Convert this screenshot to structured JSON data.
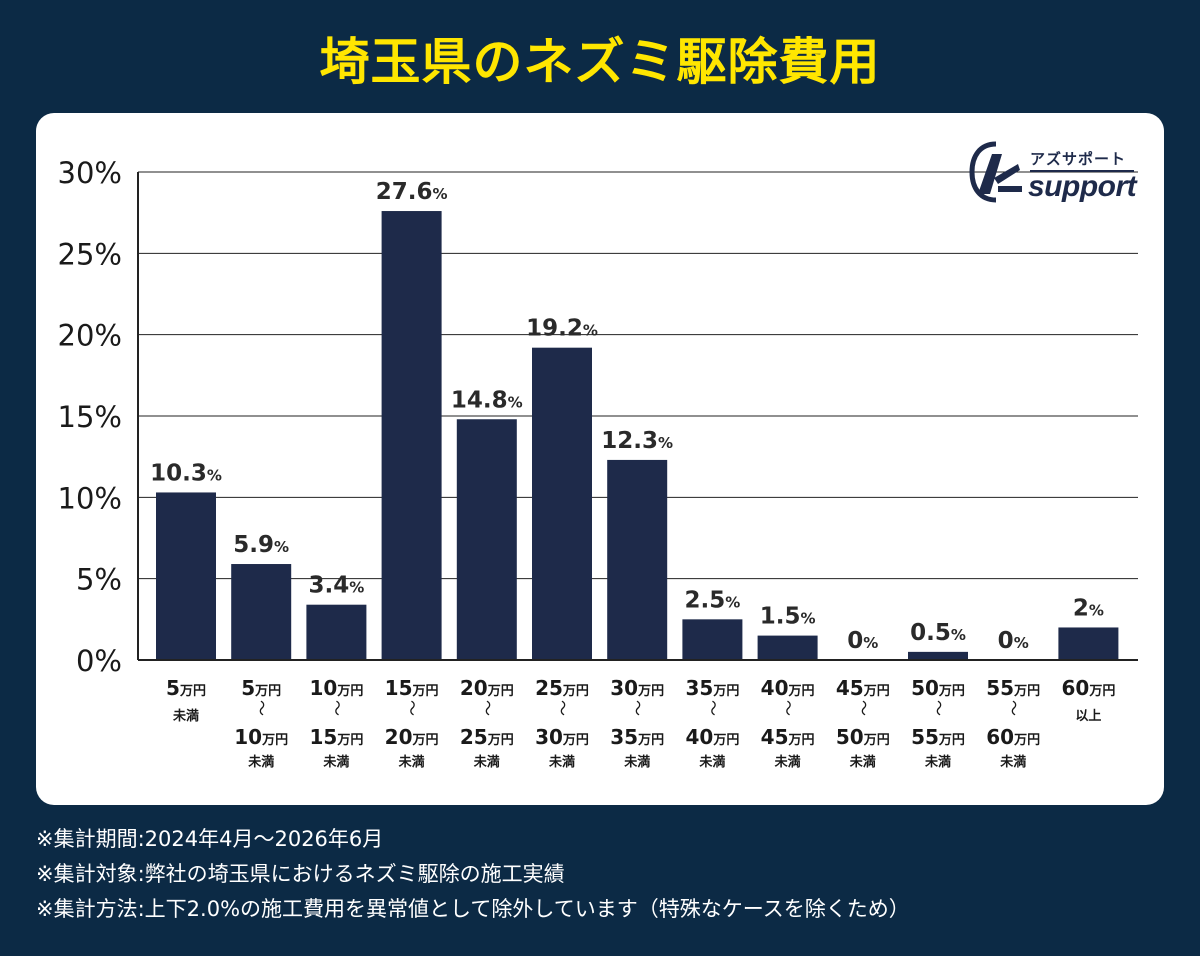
{
  "title": "埼玉県のネズミ駆除費用",
  "logo": {
    "jp": "アズサポート",
    "en": "support",
    "mark": "Az"
  },
  "notes": [
    "※集計期間:2024年4月～2026年6月",
    "※集計対象:弊社の埼玉県におけるネズミ駆除の施工実績",
    "※集計方法:上下2.0%の施工費用を異常値として除外しています（特殊なケースを除くため）"
  ],
  "colors": {
    "bar": "#1e2a4a",
    "background": "#0c2a45",
    "title": "#ffe600",
    "card": "#ffffff"
  },
  "chart_data": {
    "type": "bar",
    "ylim": [
      0,
      30
    ],
    "yticks": [
      {
        "value": 0,
        "label": "0%"
      },
      {
        "value": 5,
        "label": "5%"
      },
      {
        "value": 10,
        "label": "10%"
      },
      {
        "value": 15,
        "label": "15%"
      },
      {
        "value": 20,
        "label": "20%"
      },
      {
        "value": 25,
        "label": "25%"
      },
      {
        "value": 30,
        "label": "30%"
      }
    ],
    "grid": true,
    "categories": [
      {
        "lines": [
          [
            "5",
            "万円"
          ],
          [
            "未満"
          ]
        ]
      },
      {
        "lines": [
          [
            "5",
            "万円"
          ],
          [
            "～"
          ],
          [
            "10",
            "万円"
          ],
          [
            "未満"
          ]
        ]
      },
      {
        "lines": [
          [
            "10",
            "万円"
          ],
          [
            "～"
          ],
          [
            "15",
            "万円"
          ],
          [
            "未満"
          ]
        ]
      },
      {
        "lines": [
          [
            "15",
            "万円"
          ],
          [
            "～"
          ],
          [
            "20",
            "万円"
          ],
          [
            "未満"
          ]
        ]
      },
      {
        "lines": [
          [
            "20",
            "万円"
          ],
          [
            "～"
          ],
          [
            "25",
            "万円"
          ],
          [
            "未満"
          ]
        ]
      },
      {
        "lines": [
          [
            "25",
            "万円"
          ],
          [
            "～"
          ],
          [
            "30",
            "万円"
          ],
          [
            "未満"
          ]
        ]
      },
      {
        "lines": [
          [
            "30",
            "万円"
          ],
          [
            "～"
          ],
          [
            "35",
            "万円"
          ],
          [
            "未満"
          ]
        ]
      },
      {
        "lines": [
          [
            "35",
            "万円"
          ],
          [
            "～"
          ],
          [
            "40",
            "万円"
          ],
          [
            "未満"
          ]
        ]
      },
      {
        "lines": [
          [
            "40",
            "万円"
          ],
          [
            "～"
          ],
          [
            "45",
            "万円"
          ],
          [
            "未満"
          ]
        ]
      },
      {
        "lines": [
          [
            "45",
            "万円"
          ],
          [
            "～"
          ],
          [
            "50",
            "万円"
          ],
          [
            "未満"
          ]
        ]
      },
      {
        "lines": [
          [
            "50",
            "万円"
          ],
          [
            "～"
          ],
          [
            "55",
            "万円"
          ],
          [
            "未満"
          ]
        ]
      },
      {
        "lines": [
          [
            "55",
            "万円"
          ],
          [
            "～"
          ],
          [
            "60",
            "万円"
          ],
          [
            "未満"
          ]
        ]
      },
      {
        "lines": [
          [
            "60",
            "万円"
          ],
          [
            "以上"
          ]
        ]
      }
    ],
    "values": [
      10.3,
      5.9,
      3.4,
      27.6,
      14.8,
      19.2,
      12.3,
      2.5,
      1.5,
      0,
      0.5,
      0,
      2
    ],
    "value_labels": [
      "10.3",
      "5.9",
      "3.4",
      "27.6",
      "14.8",
      "19.2",
      "12.3",
      "2.5",
      "1.5",
      "0",
      "0.5",
      "0",
      "2"
    ],
    "value_unit": "%"
  }
}
